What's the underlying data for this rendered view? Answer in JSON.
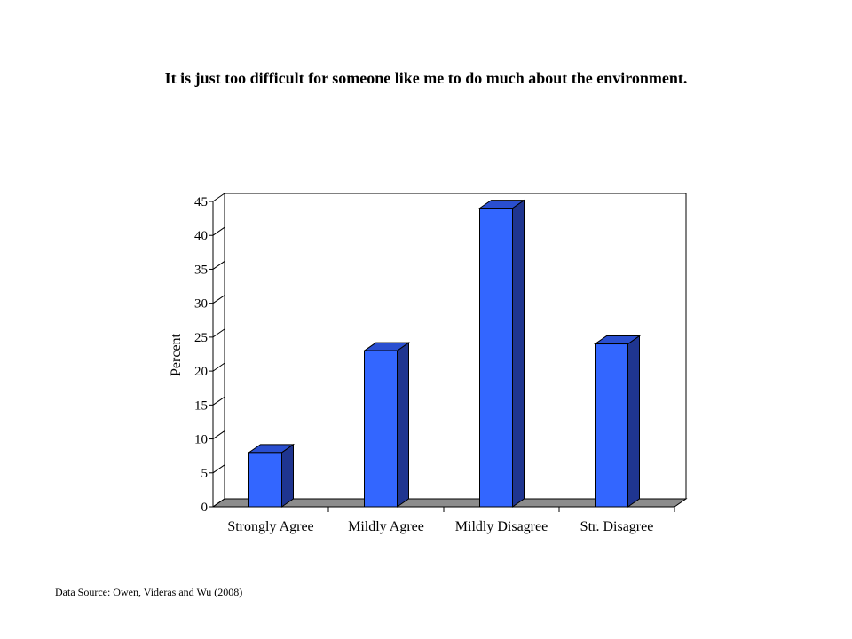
{
  "title": "It is just too difficult for someone like me to do much about the environment.",
  "source": "Data Source: Owen, Videras and Wu (2008)",
  "colors": {
    "bar_front": "#3366ff",
    "bar_top": "#2a4fd0",
    "bar_side": "#1f3590",
    "floor": "#8c8c8c"
  },
  "chart_data": {
    "type": "bar",
    "categories": [
      "Strongly Agree",
      "Mildly Agree",
      "Mildly Disagree",
      "Str. Disagree"
    ],
    "values": [
      8,
      23,
      44,
      24
    ],
    "ylabel": "Percent",
    "xlabel": "",
    "ylim": [
      0,
      45
    ],
    "yticks": [
      0,
      5,
      10,
      15,
      20,
      25,
      30,
      35,
      40,
      45
    ],
    "grid": false
  }
}
